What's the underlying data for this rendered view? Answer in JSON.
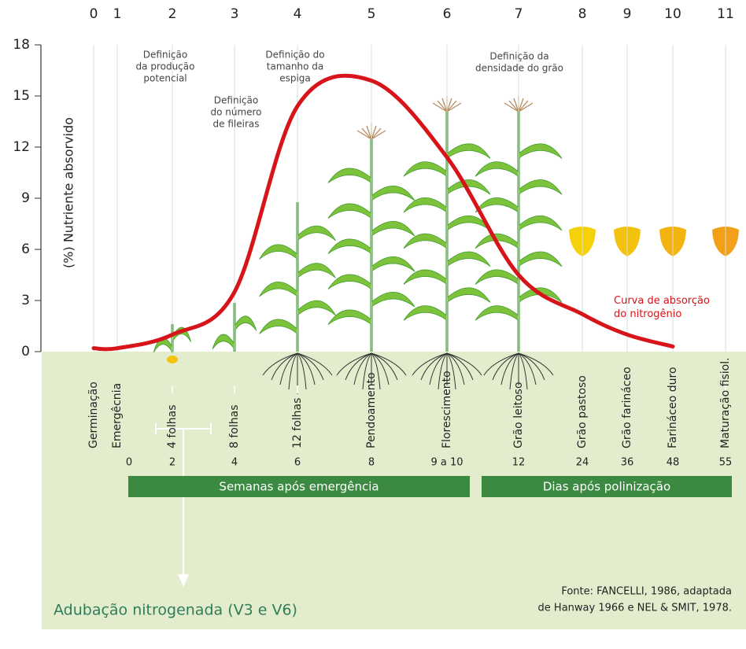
{
  "chart_data": {
    "type": "line",
    "categories": [
      "0",
      "1",
      "2",
      "3",
      "4",
      "5",
      "6",
      "7",
      "8",
      "9",
      "10",
      "11"
    ],
    "y_label": "(%) Nutriente absorvido",
    "ylim": [
      0,
      18
    ],
    "yticks": [
      0,
      3,
      6,
      9,
      12,
      15,
      18
    ],
    "series": [
      {
        "name": "Curva de absorção do nitrogênio",
        "color": "#d7141a",
        "values": [
          0.2,
          0.2,
          1.0,
          3.5,
          14.4,
          15.9,
          11.4,
          4.5,
          2.2,
          1.0,
          0.3,
          null
        ]
      }
    ],
    "stages": [
      "Germinação",
      "Emergêcnia",
      "4 folhas",
      "8 folhas",
      "12 folhas",
      "Pendoamento",
      "Florescimento",
      "Grão leitoso",
      "Grão pastoso",
      "Grão farináceo",
      "Farináceo duro",
      "Maturação fisiol."
    ],
    "times": [
      null,
      "0",
      "2",
      "4",
      "6",
      "8",
      "9 a 10",
      "12",
      "24",
      "36",
      "48",
      "55"
    ],
    "periods": [
      "Semanas após emergência",
      "Dias após polinização"
    ],
    "annotations": [
      [
        "Definição",
        "da produção",
        "potencial"
      ],
      [
        "Definição",
        "do número",
        "de fileiras"
      ],
      [
        "Definição do",
        "tamanho da",
        "espiga"
      ],
      [
        "Definição da",
        "densidade do grão"
      ]
    ],
    "fertilization": "Adubação nitrogenada (V3 e V6)",
    "source": [
      "Fonte: FANCELLI, 1986, adaptada",
      "de Hanway 1966 e NEL & SMIT, 1978."
    ]
  }
}
